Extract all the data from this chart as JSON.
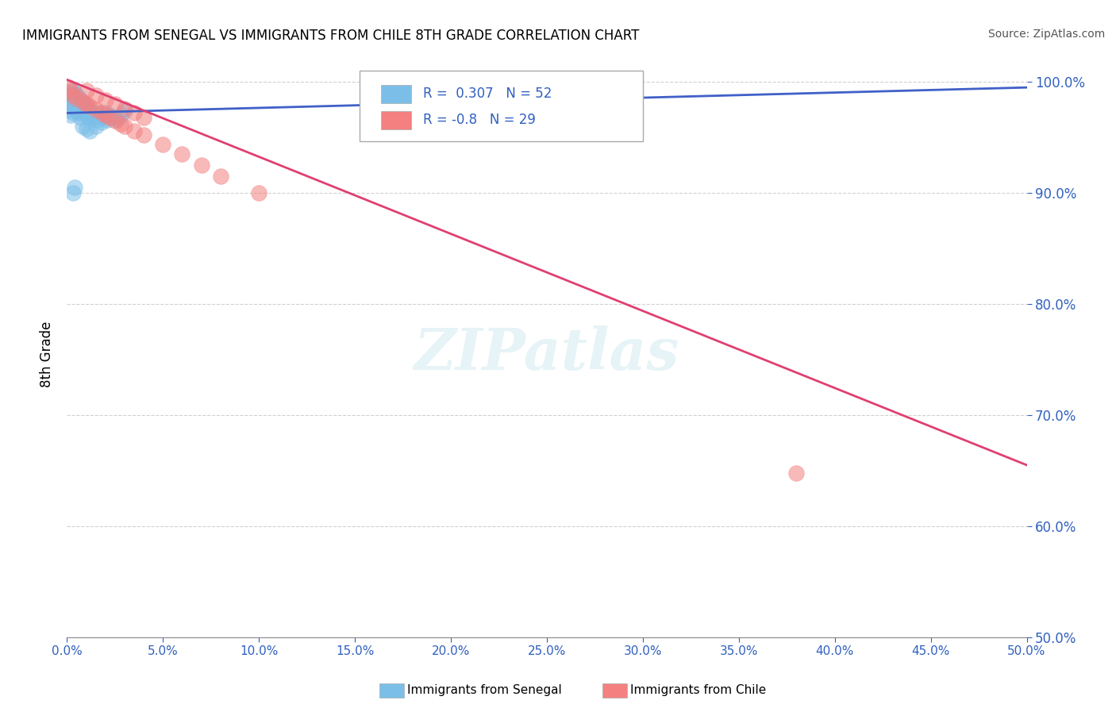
{
  "title": "IMMIGRANTS FROM SENEGAL VS IMMIGRANTS FROM CHILE 8TH GRADE CORRELATION CHART",
  "source": "Source: ZipAtlas.com",
  "ylabel": "8th Grade",
  "xlabel_senegal": "Immigrants from Senegal",
  "xlabel_chile": "Immigrants from Chile",
  "xmin": 0.0,
  "xmax": 0.5,
  "ymin": 0.5,
  "ymax": 1.01,
  "R_senegal": 0.307,
  "N_senegal": 52,
  "R_chile": -0.8,
  "N_chile": 29,
  "color_senegal": "#7BBFE8",
  "color_chile": "#F48080",
  "trendline_senegal": "#4060C8",
  "trendline_chile": "#E04070",
  "background": "#FFFFFF",
  "grid_color": "#CCCCCC",
  "senegal_x": [
    0.001,
    0.001,
    0.001,
    0.002,
    0.002,
    0.002,
    0.002,
    0.003,
    0.003,
    0.003,
    0.003,
    0.004,
    0.004,
    0.004,
    0.005,
    0.005,
    0.005,
    0.006,
    0.006,
    0.006,
    0.007,
    0.007,
    0.007,
    0.008,
    0.008,
    0.009,
    0.009,
    0.01,
    0.01,
    0.011,
    0.011,
    0.012,
    0.013,
    0.014,
    0.015,
    0.016,
    0.017,
    0.018,
    0.019,
    0.02,
    0.021,
    0.022,
    0.024,
    0.026,
    0.028,
    0.03,
    0.008,
    0.01,
    0.012,
    0.015,
    0.003,
    0.004
  ],
  "senegal_y": [
    0.99,
    0.985,
    0.975,
    0.988,
    0.982,
    0.978,
    0.97,
    0.992,
    0.986,
    0.98,
    0.972,
    0.99,
    0.984,
    0.976,
    0.988,
    0.982,
    0.974,
    0.986,
    0.98,
    0.972,
    0.984,
    0.978,
    0.968,
    0.982,
    0.975,
    0.98,
    0.972,
    0.978,
    0.97,
    0.976,
    0.968,
    0.974,
    0.97,
    0.968,
    0.972,
    0.966,
    0.97,
    0.964,
    0.968,
    0.972,
    0.966,
    0.97,
    0.968,
    0.966,
    0.97,
    0.974,
    0.96,
    0.958,
    0.956,
    0.96,
    0.9,
    0.905
  ],
  "chile_x": [
    0.001,
    0.002,
    0.003,
    0.005,
    0.008,
    0.01,
    0.012,
    0.015,
    0.018,
    0.02,
    0.022,
    0.025,
    0.028,
    0.03,
    0.035,
    0.04,
    0.05,
    0.06,
    0.07,
    0.08,
    0.01,
    0.015,
    0.02,
    0.025,
    0.03,
    0.035,
    0.04,
    0.38,
    0.1
  ],
  "chile_y": [
    0.995,
    0.992,
    0.988,
    0.985,
    0.982,
    0.98,
    0.978,
    0.975,
    0.972,
    0.97,
    0.968,
    0.965,
    0.962,
    0.96,
    0.956,
    0.952,
    0.944,
    0.935,
    0.925,
    0.915,
    0.992,
    0.988,
    0.984,
    0.98,
    0.976,
    0.972,
    0.968,
    0.648,
    0.9
  ],
  "trendline_s_x0": 0.0,
  "trendline_s_y0": 0.972,
  "trendline_s_x1": 0.5,
  "trendline_s_y1": 0.995,
  "trendline_c_x0": 0.0,
  "trendline_c_y0": 1.002,
  "trendline_c_x1": 0.5,
  "trendline_c_y1": 0.655
}
